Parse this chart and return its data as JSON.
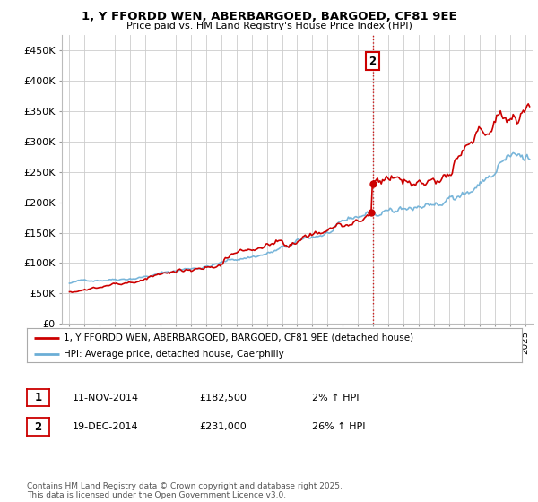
{
  "title": "1, Y FFORDD WEN, ABERBARGOED, BARGOED, CF81 9EE",
  "subtitle": "Price paid vs. HM Land Registry's House Price Index (HPI)",
  "ylabel_ticks": [
    "£0",
    "£50K",
    "£100K",
    "£150K",
    "£200K",
    "£250K",
    "£300K",
    "£350K",
    "£400K",
    "£450K"
  ],
  "ytick_values": [
    0,
    50000,
    100000,
    150000,
    200000,
    250000,
    300000,
    350000,
    400000,
    450000
  ],
  "ylim": [
    0,
    475000
  ],
  "xlim_start": 1994.5,
  "xlim_end": 2025.5,
  "hpi_color": "#6baed6",
  "price_color": "#cc0000",
  "dashed_line_color": "#cc0000",
  "marker1_date": 2014.87,
  "marker1_price": 182500,
  "marker2_date": 2014.97,
  "marker2_price": 231000,
  "legend_label1": "1, Y FFORDD WEN, ABERBARGOED, BARGOED, CF81 9EE (detached house)",
  "legend_label2": "HPI: Average price, detached house, Caerphilly",
  "table_row1": [
    "1",
    "11-NOV-2014",
    "£182,500",
    "2% ↑ HPI"
  ],
  "table_row2": [
    "2",
    "19-DEC-2014",
    "£231,000",
    "26% ↑ HPI"
  ],
  "footer": "Contains HM Land Registry data © Crown copyright and database right 2025.\nThis data is licensed under the Open Government Licence v3.0.",
  "background_color": "#ffffff",
  "grid_color": "#cccccc"
}
